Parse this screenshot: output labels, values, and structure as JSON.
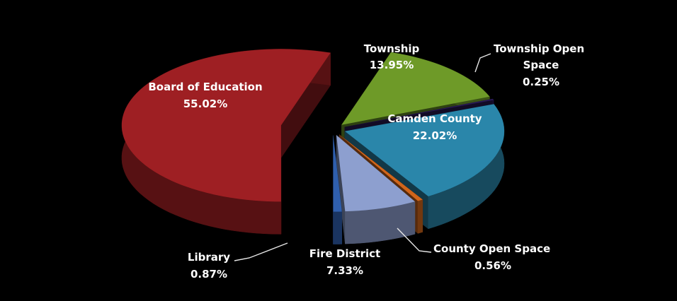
{
  "chart_data": {
    "type": "pie",
    "title": "",
    "style": "3d-exploded",
    "background": "#000000",
    "series": [
      {
        "label": "Board of Education",
        "value": 55.02,
        "value_label": "55.02%",
        "color": "#9e1f23"
      },
      {
        "label": "Township",
        "value": 13.95,
        "value_label": "13.95%",
        "color": "#6e9a28"
      },
      {
        "label": "Township Open Space",
        "value": 0.25,
        "value_label": "0.25%",
        "color": "#2a1a57"
      },
      {
        "label": "Camden County",
        "value": 22.02,
        "value_label": "22.02%",
        "color": "#2a86aa"
      },
      {
        "label": "County Open Space",
        "value": 0.56,
        "value_label": "0.56%",
        "color": "#d0651b"
      },
      {
        "label": "Fire District",
        "value": 7.33,
        "value_label": "7.33%",
        "color": "#8d9fcf"
      },
      {
        "label": "Library",
        "value": 0.87,
        "value_label": "0.87%",
        "color": "#2f5fae"
      }
    ]
  }
}
